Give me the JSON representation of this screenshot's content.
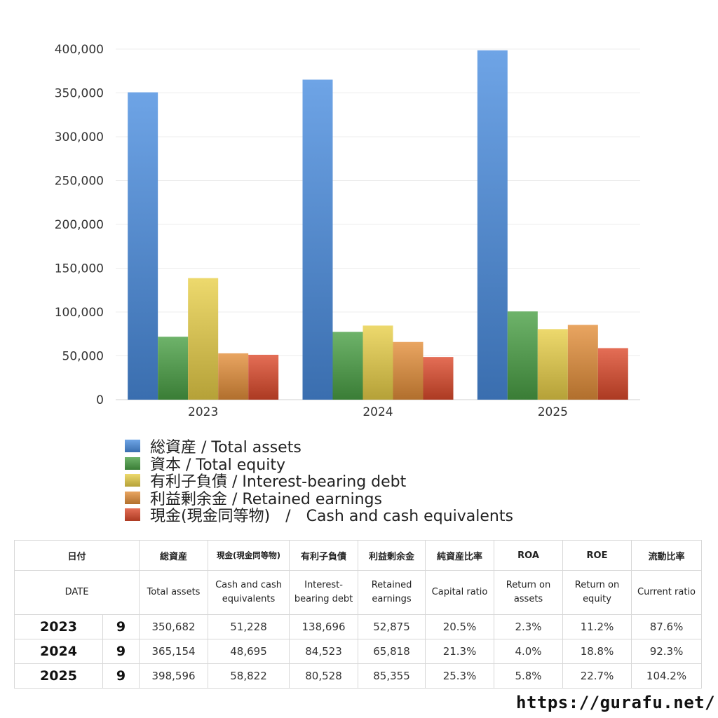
{
  "chart_data": {
    "type": "bar",
    "categories": [
      "2023",
      "2024",
      "2025"
    ],
    "series": [
      {
        "name": "総資産 / Total assets",
        "color": "#4a8de0",
        "values": [
          350682,
          365154,
          398596
        ]
      },
      {
        "name": "資本 / Total equity",
        "color": "#4aa045",
        "values": [
          71800,
          77400,
          100700
        ]
      },
      {
        "name": "有利子負債 / Interest-bearing debt",
        "color": "#e8cf48",
        "values": [
          138696,
          84523,
          80528
        ]
      },
      {
        "name": "利益剰余金 / Retained earnings",
        "color": "#e38e3a",
        "values": [
          52875,
          65818,
          85355
        ]
      },
      {
        "name": "現金(現金同等物)　/　Cash and cash equivalents",
        "color": "#dd4a2c",
        "values": [
          51228,
          48695,
          58822
        ]
      }
    ],
    "ylim": [
      0,
      400000
    ],
    "yticks": [
      "0",
      "50,000",
      "100,000",
      "150,000",
      "200,000",
      "250,000",
      "300,000",
      "350,000",
      "400,000"
    ],
    "grid": true,
    "legend_position": "bottom"
  },
  "table": {
    "header_jp": [
      "日付",
      "",
      "総資産",
      "現金(現金同等物)",
      "有利子負債",
      "利益剰余金",
      "純資産比率",
      "ROA",
      "ROE",
      "流動比率"
    ],
    "header_en": [
      "DATE",
      "",
      "Total assets",
      "Cash and cash equivalents",
      "Interest-bearing debt",
      "Retained earnings",
      "Capital ratio",
      "Return on assets",
      "Return on equity",
      "Current ratio"
    ],
    "rows": [
      {
        "year": "2023",
        "month": "9",
        "cells": [
          "350,682",
          "51,228",
          "138,696",
          "52,875",
          "20.5%",
          "2.3%",
          "11.2%",
          "87.6%"
        ]
      },
      {
        "year": "2024",
        "month": "9",
        "cells": [
          "365,154",
          "48,695",
          "84,523",
          "65,818",
          "21.3%",
          "4.0%",
          "18.8%",
          "92.3%"
        ]
      },
      {
        "year": "2025",
        "month": "9",
        "cells": [
          "398,596",
          "58,822",
          "80,528",
          "85,355",
          "25.3%",
          "5.8%",
          "22.7%",
          "104.2%"
        ]
      }
    ]
  },
  "site_url": "https://gurafu.net/"
}
